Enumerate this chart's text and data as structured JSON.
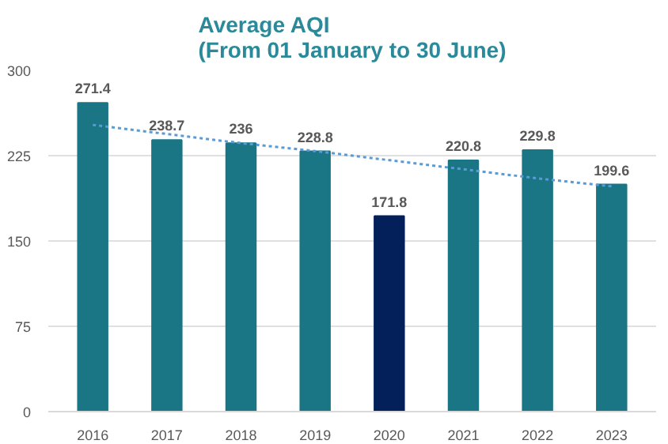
{
  "chart_data": {
    "type": "bar",
    "title": "Average AQI\n(From 01 January to 30 June)",
    "categories": [
      "2016",
      "2017",
      "2018",
      "2019",
      "2020",
      "2021",
      "2022",
      "2023"
    ],
    "series": [
      {
        "values": [
          271.4,
          238.7,
          236,
          228.8,
          171.8,
          220.8,
          229.8,
          199.6
        ],
        "value_labels": [
          "271.4",
          "238.7",
          "236",
          "228.8",
          "171.8",
          "220.8",
          "229.8",
          "199.6"
        ],
        "colors": [
          "#1a7585",
          "#1a7585",
          "#1a7585",
          "#1a7585",
          "#04205a",
          "#1a7585",
          "#1a7585",
          "#1a7585"
        ]
      },
      {
        "type": "line",
        "values": [
          252,
          244,
          236,
          229,
          221,
          213,
          205,
          198
        ],
        "color": "#5b9bd5",
        "line_style": "dotted"
      }
    ],
    "ylim": [
      0,
      300
    ],
    "yticks": [
      0,
      75,
      150,
      225,
      300
    ],
    "grid": "y"
  }
}
